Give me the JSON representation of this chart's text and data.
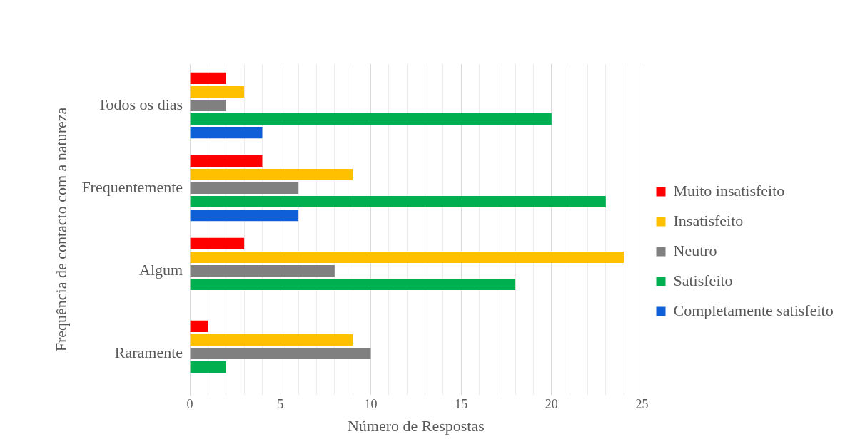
{
  "chart_data": {
    "type": "bar",
    "orientation": "horizontal",
    "xlabel": "Número de Respostas",
    "ylabel": "Frequência de contacto com a natureza",
    "categories": [
      "Todos os dias",
      "Frequentemente",
      "Algum",
      "Raramente"
    ],
    "series": [
      {
        "name": "Muito insatisfeito",
        "color": "#ff0000",
        "values": [
          2,
          4,
          3,
          1
        ]
      },
      {
        "name": "Insatisfeito",
        "color": "#ffc000",
        "values": [
          3,
          9,
          24,
          9
        ]
      },
      {
        "name": "Neutro",
        "color": "#808080",
        "values": [
          2,
          6,
          8,
          10
        ]
      },
      {
        "name": "Satisfeito",
        "color": "#00b050",
        "values": [
          20,
          23,
          18,
          2
        ]
      },
      {
        "name": "Completamente satisfeito",
        "color": "#0f5fd8",
        "values": [
          4,
          6,
          0,
          0
        ]
      }
    ],
    "xlim": [
      0,
      25
    ],
    "xticks": [
      0,
      {
        "value": 1,
        "label": null
      },
      {
        "value": 2,
        "label": null
      },
      {
        "value": 3,
        "label": null
      },
      {
        "value": 4,
        "label": null
      },
      5,
      {
        "value": 6,
        "label": null
      },
      {
        "value": 7,
        "label": null
      },
      {
        "value": 8,
        "label": null
      },
      {
        "value": 9,
        "label": null
      },
      10,
      {
        "value": 11,
        "label": null
      },
      {
        "value": 12,
        "label": null
      },
      {
        "value": 13,
        "label": null
      },
      {
        "value": 14,
        "label": null
      },
      15,
      {
        "value": 16,
        "label": null
      },
      {
        "value": 17,
        "label": null
      },
      {
        "value": 18,
        "label": null
      },
      {
        "value": 19,
        "label": null
      },
      20,
      {
        "value": 21,
        "label": null
      },
      {
        "value": 22,
        "label": null
      },
      {
        "value": 23,
        "label": null
      },
      {
        "value": 24,
        "label": null
      },
      25
    ],
    "grid": "x",
    "legend": "right"
  }
}
